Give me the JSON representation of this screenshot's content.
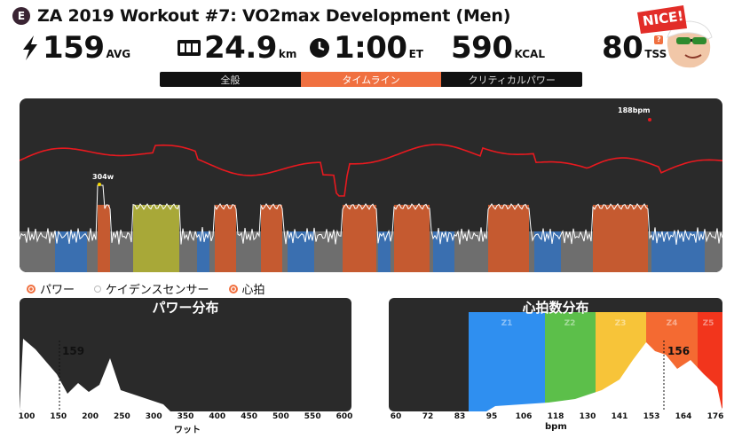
{
  "header": {
    "badge": "E",
    "title": "ZA 2019 Workout #7: VO2max Development (Men)"
  },
  "stats": {
    "power": {
      "value": "159",
      "unit": "AVG",
      "icon": "lightning-bolt-icon"
    },
    "distance": {
      "value": "24.9",
      "unit": "km",
      "icon": "odometer-icon"
    },
    "time": {
      "value": "1:00",
      "unit": "ET",
      "icon": "clock-icon"
    },
    "calories": {
      "value": "590",
      "unit": "KCAL"
    },
    "tss": {
      "value": "80",
      "unit": "TSS",
      "help": "?"
    }
  },
  "mascot": {
    "label": "NICE!"
  },
  "tabs": [
    {
      "label": "全般",
      "active": false
    },
    {
      "label": "タイムライン",
      "active": true
    },
    {
      "label": "クリティカルパワー",
      "active": false
    }
  ],
  "timeline": {
    "max_power_label": "304w",
    "max_hr_label": "188bpm",
    "colors": {
      "heart_rate": "#e8191f",
      "power_trace": "#ffffff",
      "background": "#2a2a2a"
    }
  },
  "legend": [
    {
      "label": "パワー",
      "color": "#f07040",
      "checked": true
    },
    {
      "label": "ケイデンスセンサー",
      "color": "#ffffff",
      "checked": false
    },
    {
      "label": "心拍",
      "color": "#f07040",
      "checked": true
    }
  ],
  "power_distribution": {
    "title": "パワー分布",
    "avg_label": "159",
    "x_axis_label": "ワット",
    "ticks": [
      "100",
      "150",
      "200",
      "250",
      "300",
      "350",
      "400",
      "450",
      "500",
      "550",
      "600"
    ]
  },
  "hr_distribution": {
    "title": "心拍数分布",
    "avg_label": "156",
    "x_axis_label": "bpm",
    "ticks": [
      "60",
      "72",
      "83",
      "95",
      "106",
      "118",
      "130",
      "141",
      "153",
      "164",
      "176"
    ],
    "zones": [
      {
        "label": "Z1",
        "color": "#2f8ff0"
      },
      {
        "label": "Z2",
        "color": "#5cbf4a"
      },
      {
        "label": "Z3",
        "color": "#f7c439"
      },
      {
        "label": "Z4",
        "color": "#f46a32"
      },
      {
        "label": "Z5",
        "color": "#f2351c"
      }
    ]
  }
}
